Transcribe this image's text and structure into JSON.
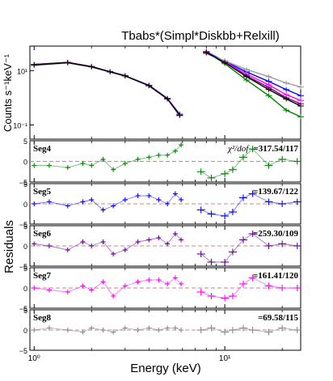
{
  "chart_data": {
    "type": "scatter",
    "title": "Tbabs*(Simpl*Diskbb+Relxill)",
    "xlabel": "Energy (keV)",
    "ylabel_top": "Counts s⁻¹keV⁻¹",
    "ylabel_bottom": "Residuals",
    "x_scale": "log",
    "xlim": [
      0.95,
      25
    ],
    "x_ticks": [
      {
        "value": 1,
        "label": "10⁰"
      },
      {
        "value": 10,
        "label": "10¹"
      }
    ],
    "spectrum": {
      "y_scale": "log",
      "ylim": [
        0.03,
        80
      ],
      "y_ticks": [
        {
          "value": 0.1,
          "label": "10⁻¹"
        },
        {
          "value": 10,
          "label": "10¹"
        }
      ],
      "series": [
        {
          "color": "#008000",
          "x": [
            1.0,
            1.5,
            2.0,
            2.5,
            3.0,
            4.0,
            5.0,
            5.8,
            8.0,
            10.0,
            13.0,
            17.0,
            21.0,
            25.0
          ],
          "y": [
            17.0,
            20.0,
            14.0,
            9.0,
            6.5,
            2.8,
            0.9,
            0.22,
            50.0,
            18.0,
            4.5,
            1.2,
            0.35,
            0.2
          ]
        },
        {
          "color": "#0000ff",
          "x": [
            1.0,
            1.5,
            2.0,
            2.5,
            3.0,
            4.0,
            5.0,
            5.8,
            8.0,
            10.0,
            13.0,
            17.0,
            21.0,
            25.0
          ],
          "y": [
            16.5,
            19.8,
            14.0,
            9.2,
            6.5,
            2.9,
            0.95,
            0.25,
            50.0,
            22.0,
            9.0,
            4.0,
            2.0,
            1.2
          ]
        },
        {
          "color": "#800080",
          "x": [
            1.0,
            1.5,
            2.0,
            2.5,
            3.0,
            4.0,
            5.0,
            5.8,
            8.0,
            10.0,
            13.0,
            17.0,
            21.0,
            25.0
          ],
          "y": [
            16.8,
            20.2,
            14.2,
            9.1,
            6.4,
            2.85,
            0.92,
            0.23,
            48.0,
            20.0,
            6.5,
            2.4,
            1.0,
            0.6
          ]
        },
        {
          "color": "#ff00ff",
          "x": [
            1.0,
            1.5,
            2.0,
            2.5,
            3.0,
            4.0,
            5.0,
            5.8,
            8.0,
            10.0,
            13.0,
            17.0,
            21.0,
            25.0
          ],
          "y": [
            16.0,
            19.5,
            13.8,
            9.0,
            6.4,
            2.75,
            0.9,
            0.22,
            45.0,
            21.0,
            7.5,
            3.0,
            1.3,
            0.8
          ]
        },
        {
          "color": "#999999",
          "x": [
            1.0,
            1.5,
            2.0,
            2.5,
            3.0,
            4.0,
            5.0,
            5.8,
            8.0,
            10.0,
            13.0,
            17.0,
            21.0,
            25.0
          ],
          "y": [
            15.5,
            19.0,
            13.5,
            8.8,
            6.3,
            2.8,
            0.93,
            0.24,
            42.0,
            23.0,
            11.0,
            6.0,
            3.5,
            2.5
          ]
        },
        {
          "color": "#000000",
          "x": [
            1.0,
            1.5,
            2.0,
            2.5,
            3.0,
            4.0,
            5.0,
            5.8,
            8.0,
            10.0,
            13.0,
            17.0,
            21.0,
            25.0
          ],
          "y": [
            16.2,
            19.7,
            13.9,
            9.0,
            6.4,
            2.8,
            0.92,
            0.23,
            46.0,
            20.0,
            6.0,
            2.0,
            0.9,
            0.5
          ]
        }
      ]
    },
    "residual_panels": [
      {
        "label": "Seg4",
        "color": "#008000",
        "stat_prefix": "χ²/dof",
        "stat": "=317.54/117",
        "ylim": [
          -5,
          5
        ],
        "y_ticks": [
          -5,
          0,
          5
        ],
        "x": [
          1.0,
          1.2,
          1.5,
          1.8,
          2.0,
          2.3,
          2.6,
          3.0,
          3.5,
          4.0,
          4.5,
          5.0,
          5.5,
          5.9,
          7.5,
          8.5,
          10.0,
          11.0,
          12.5,
          14.0,
          17.0,
          20.0,
          24.0
        ],
        "y": [
          -1.0,
          -1.0,
          -1.5,
          -0.5,
          -1.0,
          0.5,
          -2.0,
          -0.5,
          0.5,
          1.0,
          1.5,
          1.5,
          2.5,
          4.0,
          -2.5,
          -4.0,
          -3.0,
          -2.0,
          1.0,
          3.0,
          -1.0,
          0.5,
          0.0
        ]
      },
      {
        "label": "Seg5",
        "color": "#0000ff",
        "stat": "=139.67/122",
        "ylim": [
          -5,
          5
        ],
        "y_ticks": [
          -5,
          0,
          5
        ],
        "x": [
          1.0,
          1.2,
          1.5,
          1.8,
          2.0,
          2.3,
          2.6,
          3.0,
          3.5,
          4.0,
          4.5,
          5.0,
          5.5,
          5.9,
          7.5,
          8.5,
          10.0,
          11.0,
          12.5,
          14.0,
          17.0,
          20.0,
          24.0
        ],
        "y": [
          0.0,
          0.5,
          -0.5,
          0.5,
          1.0,
          -1.5,
          -0.5,
          1.0,
          2.0,
          2.0,
          1.0,
          0.0,
          2.5,
          1.0,
          -1.5,
          -2.5,
          -3.0,
          -2.0,
          1.5,
          2.5,
          0.5,
          0.0,
          0.5
        ]
      },
      {
        "label": "Seg6",
        "color": "#660099",
        "stat": "=259.30/109",
        "ylim": [
          -5,
          5
        ],
        "y_ticks": [
          -5,
          0,
          5
        ],
        "x": [
          1.0,
          1.2,
          1.5,
          1.8,
          2.0,
          2.3,
          2.6,
          3.0,
          3.5,
          4.0,
          4.5,
          5.0,
          5.5,
          5.9,
          7.5,
          8.5,
          10.0,
          11.0,
          12.5,
          14.0,
          17.0,
          20.0,
          24.0
        ],
        "y": [
          0.5,
          0.0,
          -1.0,
          1.0,
          0.0,
          1.0,
          -2.0,
          -1.0,
          1.0,
          1.5,
          2.0,
          0.5,
          3.0,
          1.5,
          -2.0,
          -4.0,
          -4.0,
          -1.5,
          1.5,
          3.0,
          0.0,
          0.5,
          0.0
        ]
      },
      {
        "label": "Seg7",
        "color": "#ff00ff",
        "stat": "=161.41/120",
        "ylim": [
          -5,
          5
        ],
        "y_ticks": [
          -5,
          0,
          5
        ],
        "x": [
          1.0,
          1.2,
          1.5,
          1.8,
          2.0,
          2.3,
          2.6,
          3.0,
          3.5,
          4.0,
          4.5,
          5.0,
          5.5,
          5.9,
          7.5,
          8.5,
          10.0,
          11.0,
          12.5,
          14.0,
          17.0,
          20.0,
          24.0
        ],
        "y": [
          0.0,
          -0.5,
          -1.0,
          0.5,
          -0.5,
          1.5,
          -2.0,
          0.5,
          1.5,
          2.0,
          2.0,
          1.0,
          2.5,
          1.0,
          -1.0,
          -2.0,
          -2.5,
          -2.0,
          1.0,
          2.5,
          0.5,
          0.0,
          0.0
        ]
      },
      {
        "label": "Seg8",
        "color": "#888888",
        "stat": "=69.58/115",
        "ylim": [
          -5,
          5
        ],
        "y_ticks": [
          -5,
          0,
          5
        ],
        "x": [
          1.0,
          1.2,
          1.5,
          1.8,
          2.0,
          2.3,
          2.6,
          3.0,
          3.5,
          4.0,
          4.5,
          5.0,
          5.5,
          5.9,
          7.5,
          8.5,
          10.0,
          11.0,
          12.5,
          14.0,
          17.0,
          20.0,
          24.0
        ],
        "y": [
          0.0,
          0.5,
          0.0,
          -0.5,
          0.5,
          0.0,
          -0.5,
          0.5,
          0.0,
          0.5,
          0.0,
          0.5,
          0.5,
          0.0,
          0.0,
          0.5,
          -0.5,
          0.0,
          0.5,
          0.0,
          -0.5,
          0.5,
          0.0
        ]
      }
    ]
  }
}
